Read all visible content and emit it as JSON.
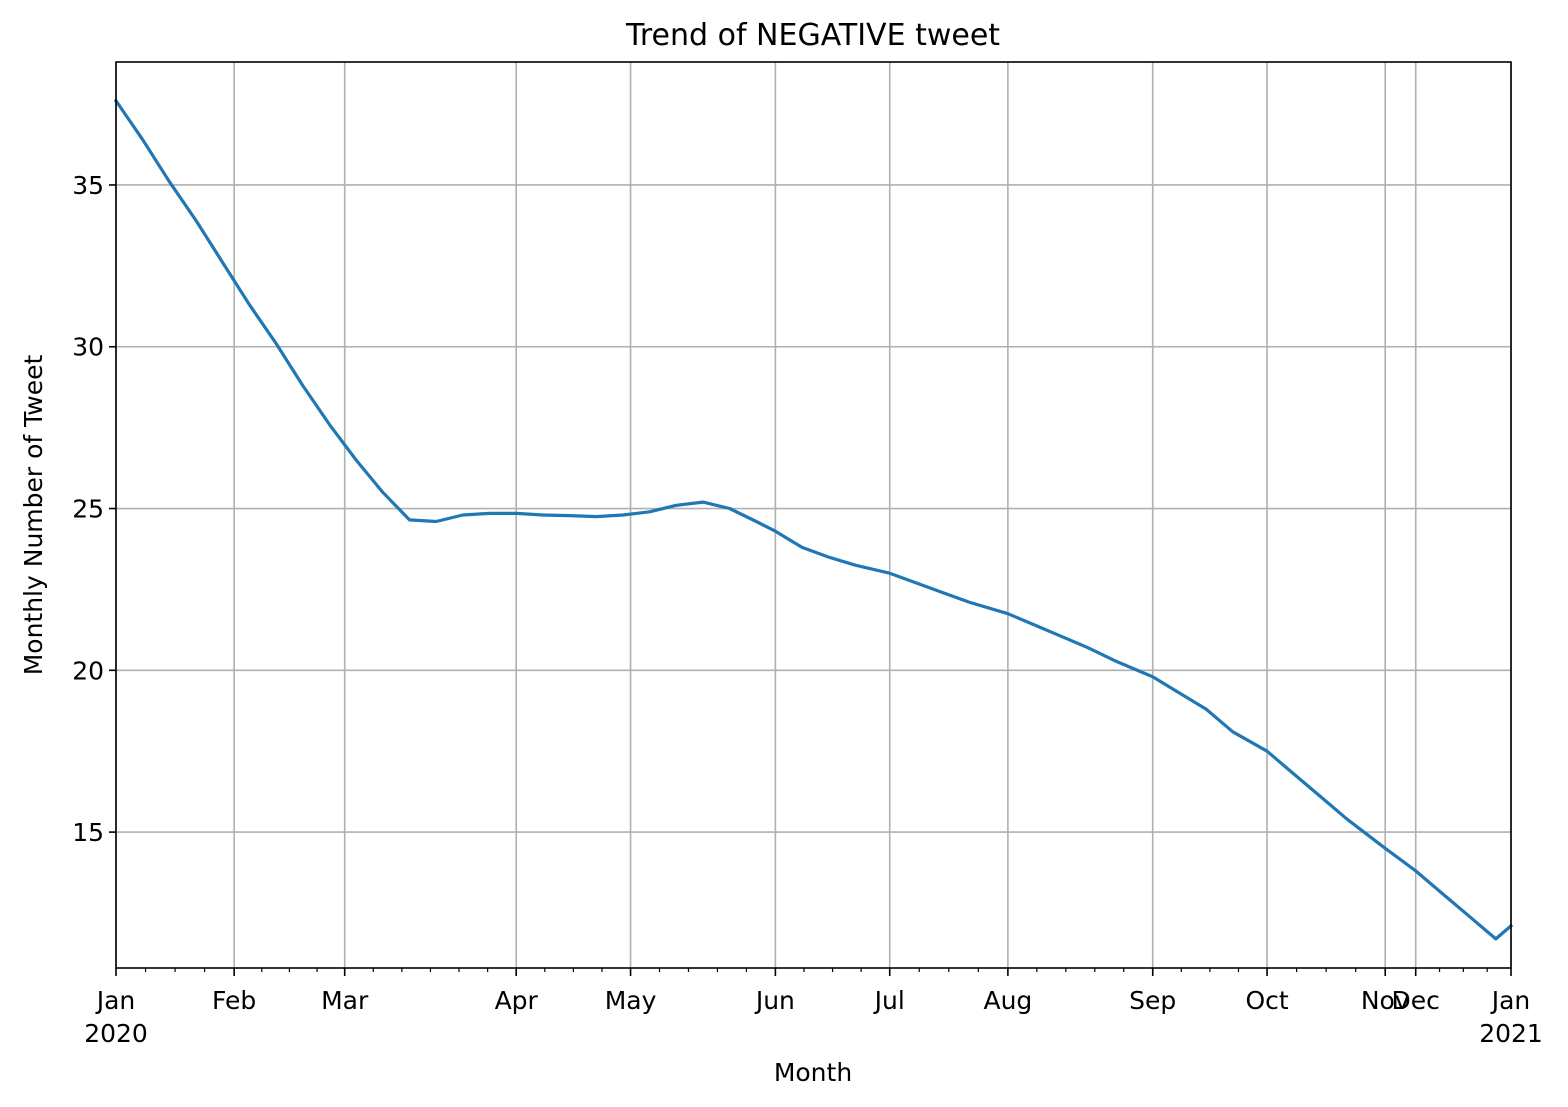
{
  "chart_data": {
    "type": "line",
    "title": "Trend of NEGATIVE tweet",
    "xlabel": "Month",
    "ylabel": "Monthly Number of Tweet",
    "xlim": [
      "2020-01-01",
      "2021-01-01"
    ],
    "ylim": [
      10.8,
      38.8
    ],
    "y_ticks": [
      15,
      20,
      25,
      30,
      35
    ],
    "x_ticks": [
      {
        "date": "2020-01-01",
        "label": "Jan",
        "sublabel": "2020"
      },
      {
        "date": "2020-02-01",
        "label": "Feb",
        "sublabel": ""
      },
      {
        "date": "2020-03-01",
        "label": "Mar",
        "sublabel": ""
      },
      {
        "date": "2020-04-15",
        "label": "Apr",
        "sublabel": ""
      },
      {
        "date": "2020-05-15",
        "label": "May",
        "sublabel": ""
      },
      {
        "date": "2020-06-22",
        "label": "Jun",
        "sublabel": ""
      },
      {
        "date": "2020-07-22",
        "label": "Jul",
        "sublabel": ""
      },
      {
        "date": "2020-08-22",
        "label": "Aug",
        "sublabel": ""
      },
      {
        "date": "2020-09-29",
        "label": "Sep",
        "sublabel": ""
      },
      {
        "date": "2020-10-29",
        "label": "Oct",
        "sublabel": ""
      },
      {
        "date": "2020-11-29",
        "label": "Nov",
        "sublabel": ""
      },
      {
        "date": "2020-12-07",
        "label": "Dec",
        "sublabel": ""
      },
      {
        "date": "2021-01-01",
        "label": "Jan",
        "sublabel": "2021"
      }
    ],
    "grid": true,
    "series": [
      {
        "color": "#1f77b4",
        "x": [
          "2020-01-01",
          "2020-01-08",
          "2020-01-15",
          "2020-01-22",
          "2020-01-29",
          "2020-02-05",
          "2020-02-12",
          "2020-02-19",
          "2020-02-26",
          "2020-03-04",
          "2020-03-11",
          "2020-03-18",
          "2020-03-25",
          "2020-04-01",
          "2020-04-08",
          "2020-04-15",
          "2020-04-22",
          "2020-04-29",
          "2020-05-06",
          "2020-05-13",
          "2020-05-20",
          "2020-05-27",
          "2020-06-03",
          "2020-06-10",
          "2020-06-17",
          "2020-06-22",
          "2020-06-29",
          "2020-07-06",
          "2020-07-13",
          "2020-07-22",
          "2020-07-29",
          "2020-08-05",
          "2020-08-12",
          "2020-08-22",
          "2020-08-29",
          "2020-09-05",
          "2020-09-12",
          "2020-09-19",
          "2020-09-29",
          "2020-10-06",
          "2020-10-13",
          "2020-10-20",
          "2020-10-29",
          "2020-11-05",
          "2020-11-12",
          "2020-11-19",
          "2020-11-29",
          "2020-12-07",
          "2020-12-14",
          "2020-12-21",
          "2020-12-28",
          "2021-01-01"
        ],
        "y": [
          37.6,
          36.4,
          35.1,
          33.9,
          32.6,
          31.3,
          30.1,
          28.8,
          27.6,
          26.5,
          25.5,
          24.65,
          24.6,
          24.8,
          24.85,
          24.85,
          24.8,
          24.78,
          24.75,
          24.8,
          24.9,
          25.1,
          25.2,
          25.0,
          24.6,
          24.3,
          23.8,
          23.5,
          23.25,
          23.0,
          22.7,
          22.4,
          22.1,
          21.75,
          21.4,
          21.05,
          20.7,
          20.3,
          19.8,
          19.3,
          18.8,
          18.1,
          17.5,
          16.8,
          16.1,
          15.4,
          14.5,
          13.8,
          13.1,
          12.4,
          11.7,
          12.1
        ]
      }
    ]
  }
}
